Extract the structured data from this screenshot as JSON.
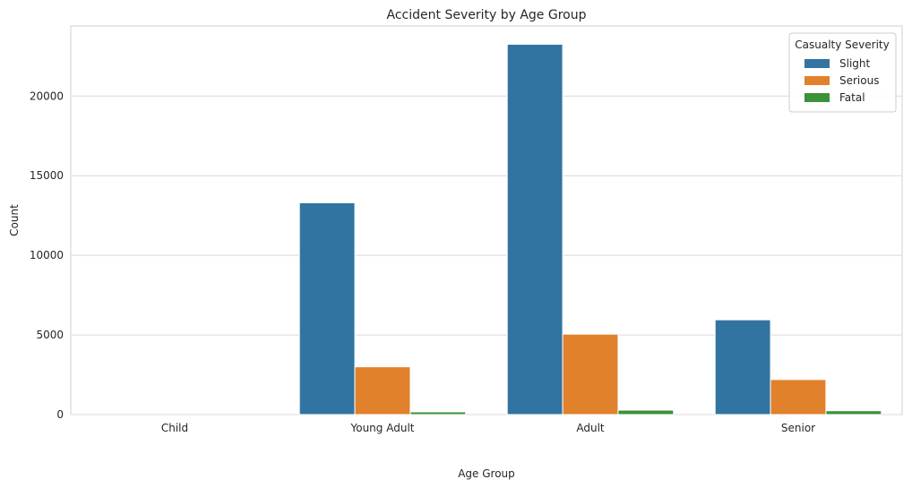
{
  "chart_data": {
    "type": "bar",
    "title": "Accident Severity by Age Group",
    "xlabel": "Age Group",
    "ylabel": "Count",
    "categories": [
      "Child",
      "Young Adult",
      "Adult",
      "Senior"
    ],
    "series": [
      {
        "name": "Slight",
        "color": "#3274a1",
        "values": [
          0,
          13300,
          23250,
          5950
        ]
      },
      {
        "name": "Serious",
        "color": "#e1812c",
        "values": [
          0,
          3000,
          5050,
          2200
        ]
      },
      {
        "name": "Fatal",
        "color": "#3a923a",
        "values": [
          0,
          170,
          280,
          240
        ]
      }
    ],
    "ylim": [
      0,
      24400
    ],
    "yticks": [
      0,
      5000,
      10000,
      15000,
      20000
    ],
    "grid": true,
    "legend": {
      "title": "Casualty Severity",
      "position": "top-right"
    }
  }
}
